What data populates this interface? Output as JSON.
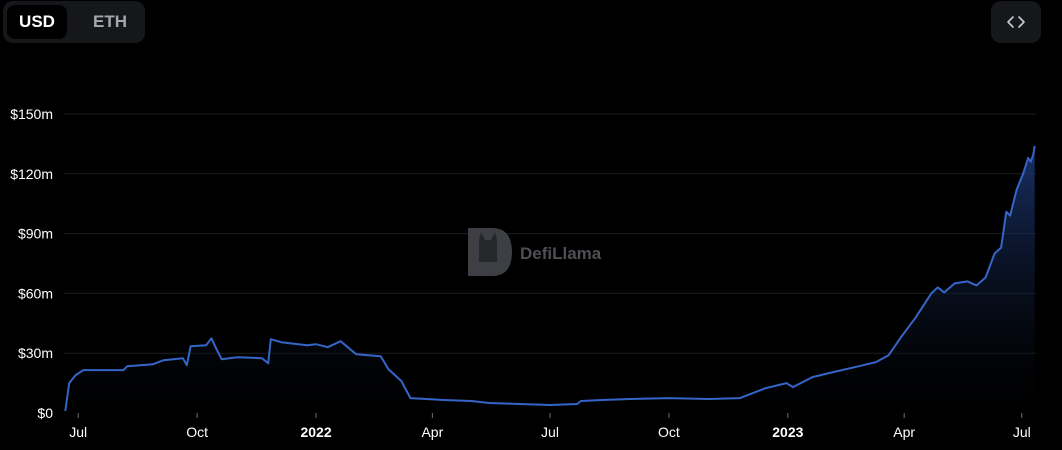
{
  "currency_toggle": {
    "options": [
      "USD",
      "ETH"
    ],
    "selected": "USD"
  },
  "embed_button": {
    "icon": "code-brackets-icon"
  },
  "watermark": {
    "text": "DefiLlama"
  },
  "colors": {
    "line": "#3565c8",
    "fill_top": "#1e3a78",
    "fill_bottom": "#000000",
    "grid": "#1c1d22",
    "text": "#ffffff"
  },
  "chart_data": {
    "type": "area",
    "title": "",
    "xlabel": "",
    "ylabel": "",
    "ylim": [
      0,
      150
    ],
    "y_unit": "million USD",
    "grid": "horizontal",
    "y_ticks": [
      {
        "value": 0,
        "label": "$0"
      },
      {
        "value": 30,
        "label": "$30m"
      },
      {
        "value": 60,
        "label": "$60m"
      },
      {
        "value": 90,
        "label": "$90m"
      },
      {
        "value": 120,
        "label": "$120m"
      },
      {
        "value": 150,
        "label": "$150m"
      }
    ],
    "x_range": [
      "2021-06-20",
      "2023-07-12"
    ],
    "x_ticks": [
      {
        "date": "2021-07-01",
        "label": "Jul",
        "bold": false
      },
      {
        "date": "2021-10-01",
        "label": "Oct",
        "bold": false
      },
      {
        "date": "2022-01-01",
        "label": "2022",
        "bold": true
      },
      {
        "date": "2022-04-01",
        "label": "Apr",
        "bold": false
      },
      {
        "date": "2022-07-01",
        "label": "Jul",
        "bold": false
      },
      {
        "date": "2022-10-01",
        "label": "Oct",
        "bold": false
      },
      {
        "date": "2023-01-01",
        "label": "2023",
        "bold": true
      },
      {
        "date": "2023-04-01",
        "label": "Apr",
        "bold": false
      },
      {
        "date": "2023-07-01",
        "label": "Jul",
        "bold": false
      }
    ],
    "series": [
      {
        "points": [
          [
            "2021-06-21",
            1
          ],
          [
            "2021-06-24",
            15
          ],
          [
            "2021-06-29",
            19
          ],
          [
            "2021-07-05",
            21.5
          ],
          [
            "2021-08-05",
            21.5
          ],
          [
            "2021-08-08",
            23.5
          ],
          [
            "2021-08-28",
            24.5
          ],
          [
            "2021-09-05",
            26.5
          ],
          [
            "2021-09-20",
            27.5
          ],
          [
            "2021-09-23",
            24
          ],
          [
            "2021-09-26",
            33.5
          ],
          [
            "2021-10-08",
            34
          ],
          [
            "2021-10-12",
            37.5
          ],
          [
            "2021-10-16",
            32
          ],
          [
            "2021-10-20",
            27
          ],
          [
            "2021-11-01",
            28
          ],
          [
            "2021-11-20",
            27.5
          ],
          [
            "2021-11-25",
            25
          ],
          [
            "2021-11-27",
            37
          ],
          [
            "2021-12-05",
            35.5
          ],
          [
            "2021-12-25",
            34
          ],
          [
            "2022-01-01",
            34.5
          ],
          [
            "2022-01-10",
            33
          ],
          [
            "2022-01-20",
            36
          ],
          [
            "2022-02-01",
            29.5
          ],
          [
            "2022-02-20",
            28.5
          ],
          [
            "2022-02-26",
            22
          ],
          [
            "2022-03-08",
            16
          ],
          [
            "2022-03-15",
            7.5
          ],
          [
            "2022-04-10",
            6.5
          ],
          [
            "2022-05-01",
            6
          ],
          [
            "2022-05-15",
            5
          ],
          [
            "2022-07-01",
            4
          ],
          [
            "2022-07-22",
            4.5
          ],
          [
            "2022-07-25",
            6
          ],
          [
            "2022-08-10",
            6.5
          ],
          [
            "2022-09-01",
            7
          ],
          [
            "2022-10-01",
            7.5
          ],
          [
            "2022-11-01",
            7
          ],
          [
            "2022-11-25",
            7.5
          ],
          [
            "2022-12-05",
            10
          ],
          [
            "2022-12-15",
            12.5
          ],
          [
            "2022-12-31",
            15
          ],
          [
            "2023-01-05",
            13
          ],
          [
            "2023-01-20",
            18
          ],
          [
            "2023-02-05",
            20.5
          ],
          [
            "2023-02-25",
            23.5
          ],
          [
            "2023-03-10",
            25.5
          ],
          [
            "2023-03-20",
            29
          ],
          [
            "2023-03-30",
            38.5
          ],
          [
            "2023-04-10",
            48
          ],
          [
            "2023-04-22",
            60
          ],
          [
            "2023-04-27",
            63
          ],
          [
            "2023-05-02",
            60.5
          ],
          [
            "2023-05-10",
            65
          ],
          [
            "2023-05-20",
            66
          ],
          [
            "2023-05-27",
            64
          ],
          [
            "2023-06-03",
            68
          ],
          [
            "2023-06-10",
            80
          ],
          [
            "2023-06-15",
            83
          ],
          [
            "2023-06-19",
            101
          ],
          [
            "2023-06-22",
            99
          ],
          [
            "2023-06-27",
            112
          ],
          [
            "2023-07-02",
            120
          ],
          [
            "2023-07-06",
            128
          ],
          [
            "2023-07-08",
            126
          ],
          [
            "2023-07-10",
            130
          ],
          [
            "2023-07-11",
            134
          ]
        ]
      }
    ]
  }
}
